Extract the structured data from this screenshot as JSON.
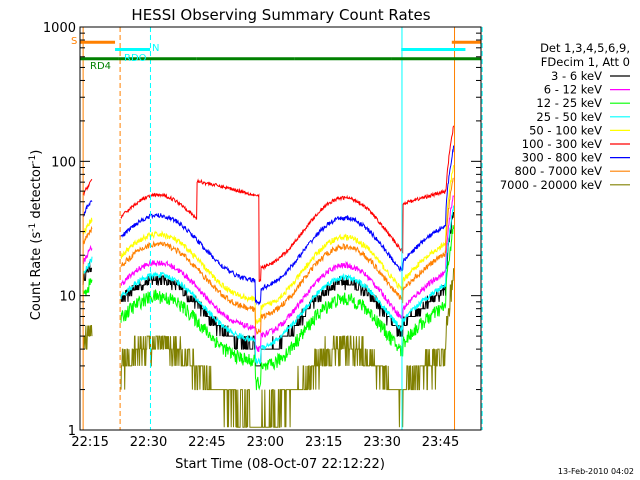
{
  "chart_data": {
    "type": "line",
    "title": "HESSI Observing Summary Count Rates",
    "xlabel": "Start Time (08-Oct-07 22:12:22)",
    "ylabel_main": "Count Rate (s",
    "ylabel_sup1": "-1",
    "ylabel_mid": " detector",
    "ylabel_sup2": "-1",
    "ylabel_end": ")",
    "footer": "13-Feb-2010 04:02",
    "y_scale": "log",
    "ylim": [
      1,
      1000
    ],
    "xlim_minutes": [
      0,
      103
    ],
    "x_ticks": [
      {
        "label": "22:15",
        "min": 2.6
      },
      {
        "label": "22:30",
        "min": 17.6
      },
      {
        "label": "22:45",
        "min": 32.6
      },
      {
        "label": "23:00",
        "min": 47.6
      },
      {
        "label": "23:15",
        "min": 62.6
      },
      {
        "label": "23:30",
        "min": 77.6
      },
      {
        "label": "23:45",
        "min": 92.6
      }
    ],
    "y_ticks": [
      {
        "label": "1",
        "value": 1
      },
      {
        "label": "10",
        "value": 10
      },
      {
        "label": "100",
        "value": 100
      },
      {
        "label": "1000",
        "value": 1000
      }
    ],
    "legend_header": [
      "Det 1,3,4,5,6,9,",
      "FDecim 1, Att 0"
    ],
    "series": [
      {
        "name": "3 - 6 keV",
        "color": "#000000",
        "base": 12,
        "noise": 0.1
      },
      {
        "name": "6 - 12 keV",
        "color": "#ff00ff",
        "base": 16,
        "noise": 0.05
      },
      {
        "name": "12 - 25 keV",
        "color": "#00ff00",
        "base": 9,
        "noise": 0.12
      },
      {
        "name": "25 - 50 keV",
        "color": "#00ffff",
        "base": 13,
        "noise": 0.05
      },
      {
        "name": "50 - 100 keV",
        "color": "#ffff00",
        "base": 26,
        "noise": 0.05
      },
      {
        "name": "100 - 300 keV",
        "color": "#ff0000",
        "base": 51,
        "noise": 0.03
      },
      {
        "name": "300 - 800 keV",
        "color": "#0000ff",
        "base": 36,
        "noise": 0.04
      },
      {
        "name": "800 - 7000 keV",
        "color": "#ff8000",
        "base": 22,
        "noise": 0.05
      },
      {
        "name": "7000 - 20000 keV",
        "color": "#808000",
        "base": 4,
        "noise": 0.25
      }
    ],
    "flags": [
      {
        "label": "S",
        "color": "#ff8000",
        "value": 770,
        "segments": [
          [
            0,
            9
          ],
          [
            95.5,
            103
          ]
        ]
      },
      {
        "label": "N",
        "color": "#00ffff",
        "value": 680,
        "segments": [
          [
            9,
            18
          ],
          [
            82.5,
            99
          ]
        ]
      },
      {
        "label": "RDO",
        "color": "#00ffff",
        "value": 650,
        "segments": []
      },
      {
        "label": "RD4",
        "color": "#008000",
        "value": 580,
        "segments": [
          [
            0,
            10
          ],
          [
            10,
            30
          ],
          [
            30,
            55
          ],
          [
            55,
            80
          ],
          [
            80,
            103
          ]
        ]
      }
    ]
  }
}
